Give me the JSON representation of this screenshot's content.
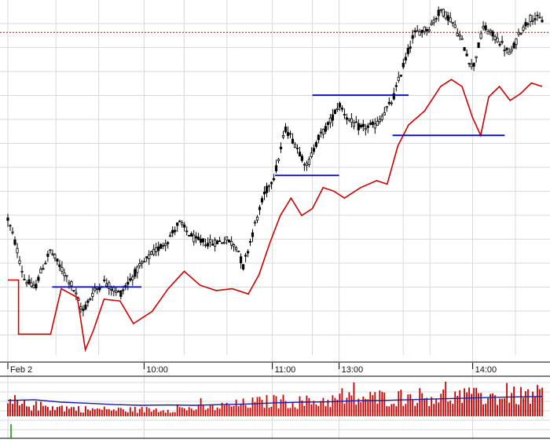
{
  "chart_data": {
    "type": "candlestick",
    "colors": {
      "background": "#ffffff",
      "grid": "#d9d9d9",
      "candle": "#000000",
      "relative_line": "#cc0000",
      "support_lines": "#0000cc",
      "reference_line": "#cc0000",
      "volume_bars": "#cc0000",
      "volume_average": "#1a1aa8",
      "volume_marker": "#009900"
    },
    "x_axis": {
      "ticks": [
        {
          "label": "Feb 2",
          "t": 0.0
        },
        {
          "label": "10:00",
          "t": 0.255
        },
        {
          "label": "11:00",
          "t": 0.495
        },
        {
          "label": "13:00",
          "t": 0.62
        },
        {
          "label": "14:00",
          "t": 0.87
        }
      ]
    },
    "price_panel": {
      "ylim": [
        0,
        100
      ],
      "reference_level": 92.5,
      "price_path": [
        [
          0.0,
          39.0
        ],
        [
          0.016,
          31.0
        ],
        [
          0.03,
          22.0
        ],
        [
          0.05,
          19.0
        ],
        [
          0.065,
          25.0
        ],
        [
          0.08,
          30.0
        ],
        [
          0.095,
          26.0
        ],
        [
          0.12,
          20.0
        ],
        [
          0.14,
          12.5
        ],
        [
          0.16,
          18.0
        ],
        [
          0.18,
          21.0
        ],
        [
          0.21,
          17.5
        ],
        [
          0.24,
          24.0
        ],
        [
          0.27,
          29.0
        ],
        [
          0.3,
          33.0
        ],
        [
          0.32,
          38.0
        ],
        [
          0.35,
          33.0
        ],
        [
          0.38,
          32.0
        ],
        [
          0.41,
          33.0
        ],
        [
          0.43,
          31.0
        ],
        [
          0.44,
          25.0
        ],
        [
          0.46,
          36.0
        ],
        [
          0.48,
          46.0
        ],
        [
          0.5,
          52.0
        ],
        [
          0.52,
          65.0
        ],
        [
          0.54,
          60.0
        ],
        [
          0.56,
          54.0
        ],
        [
          0.58,
          62.0
        ],
        [
          0.6,
          66.0
        ],
        [
          0.62,
          72.0
        ],
        [
          0.64,
          67.0
        ],
        [
          0.66,
          65.0
        ],
        [
          0.69,
          66.0
        ],
        [
          0.72,
          73.0
        ],
        [
          0.74,
          83.0
        ],
        [
          0.76,
          92.0
        ],
        [
          0.79,
          94.0
        ],
        [
          0.81,
          99.0
        ],
        [
          0.83,
          96.0
        ],
        [
          0.85,
          90.0
        ],
        [
          0.87,
          82.0
        ],
        [
          0.89,
          94.0
        ],
        [
          0.92,
          90.0
        ],
        [
          0.94,
          86.0
        ],
        [
          0.96,
          93.0
        ],
        [
          0.98,
          97.0
        ],
        [
          1.0,
          96.0
        ]
      ],
      "relative_line": [
        [
          0.0,
          21.5
        ],
        [
          0.02,
          21.5
        ],
        [
          0.02,
          6.0
        ],
        [
          0.08,
          6.0
        ],
        [
          0.1,
          19.0
        ],
        [
          0.13,
          16.5
        ],
        [
          0.145,
          1.5
        ],
        [
          0.16,
          7.0
        ],
        [
          0.18,
          16.0
        ],
        [
          0.21,
          15.5
        ],
        [
          0.235,
          9.0
        ],
        [
          0.27,
          12.5
        ],
        [
          0.3,
          19.0
        ],
        [
          0.33,
          24.0
        ],
        [
          0.36,
          20.0
        ],
        [
          0.39,
          18.5
        ],
        [
          0.42,
          19.0
        ],
        [
          0.45,
          17.5
        ],
        [
          0.47,
          23.0
        ],
        [
          0.49,
          32.0
        ],
        [
          0.51,
          40.0
        ],
        [
          0.53,
          45.0
        ],
        [
          0.55,
          40.0
        ],
        [
          0.57,
          42.0
        ],
        [
          0.59,
          48.0
        ],
        [
          0.61,
          47.0
        ],
        [
          0.63,
          45.0
        ],
        [
          0.66,
          48.0
        ],
        [
          0.69,
          50.0
        ],
        [
          0.71,
          49.0
        ],
        [
          0.73,
          60.0
        ],
        [
          0.75,
          66.0
        ],
        [
          0.78,
          70.0
        ],
        [
          0.81,
          77.0
        ],
        [
          0.83,
          79.0
        ],
        [
          0.85,
          77.0
        ],
        [
          0.87,
          68.0
        ],
        [
          0.885,
          63.0
        ],
        [
          0.9,
          74.0
        ],
        [
          0.92,
          77.0
        ],
        [
          0.94,
          73.0
        ],
        [
          0.96,
          75.0
        ],
        [
          0.98,
          78.0
        ],
        [
          1.0,
          77.0
        ]
      ],
      "support_lines": [
        {
          "t1": 0.083,
          "t2": 0.25,
          "y": 19.5
        },
        {
          "t1": 0.5,
          "t2": 0.62,
          "y": 51.5
        },
        {
          "t1": 0.57,
          "t2": 0.75,
          "y": 74.5
        },
        {
          "t1": 0.72,
          "t2": 0.93,
          "y": 63.0
        }
      ]
    },
    "volume_panel": {
      "ylim": [
        0,
        100
      ],
      "average": [
        [
          0.0,
          45.0
        ],
        [
          0.05,
          47.0
        ],
        [
          0.1,
          40.0
        ],
        [
          0.15,
          37.0
        ],
        [
          0.2,
          33.0
        ],
        [
          0.25,
          31.0
        ],
        [
          0.3,
          32.0
        ],
        [
          0.35,
          31.0
        ],
        [
          0.4,
          33.0
        ],
        [
          0.45,
          35.0
        ],
        [
          0.5,
          38.0
        ],
        [
          0.55,
          40.0
        ],
        [
          0.6,
          41.0
        ],
        [
          0.65,
          44.0
        ],
        [
          0.7,
          45.0
        ],
        [
          0.75,
          47.0
        ],
        [
          0.8,
          49.0
        ],
        [
          0.85,
          51.0
        ],
        [
          0.9,
          53.0
        ],
        [
          0.95,
          55.0
        ],
        [
          1.0,
          56.0
        ]
      ],
      "level_path": [
        [
          0.0,
          38.0
        ],
        [
          0.08,
          30.0
        ],
        [
          0.15,
          22.0
        ],
        [
          0.22,
          20.0
        ],
        [
          0.3,
          22.0
        ],
        [
          0.38,
          27.0
        ],
        [
          0.45,
          40.0
        ],
        [
          0.5,
          48.0
        ],
        [
          0.55,
          44.0
        ],
        [
          0.6,
          50.0
        ],
        [
          0.7,
          58.0
        ],
        [
          0.8,
          63.0
        ],
        [
          0.9,
          60.0
        ],
        [
          1.0,
          66.0
        ]
      ]
    }
  }
}
